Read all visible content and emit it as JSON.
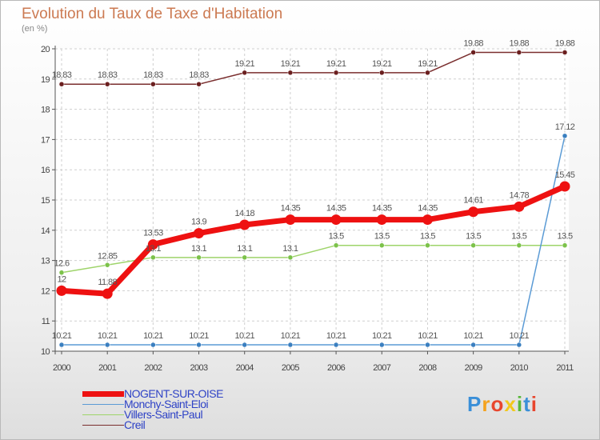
{
  "title": "Evolution du Taux de Taxe d'Habitation",
  "subtitle": "(en %)",
  "logo": {
    "letters": [
      {
        "char": "P",
        "color": "#3a8fd8"
      },
      {
        "char": "r",
        "color": "#f4a21e"
      },
      {
        "char": "o",
        "color": "#e8462e"
      },
      {
        "char": "x",
        "color": "#f2c81c"
      },
      {
        "char": "i",
        "color": "#58b83a"
      },
      {
        "char": "t",
        "color": "#3a8fd8"
      },
      {
        "char": "i",
        "color": "#e8462e"
      }
    ]
  },
  "chart_data": {
    "type": "line",
    "title": "Evolution du Taux de Taxe d'Habitation",
    "ylabel": "(en %)",
    "x": [
      "2000",
      "2001",
      "2002",
      "2003",
      "2004",
      "2005",
      "2006",
      "2007",
      "2008",
      "2009",
      "2010",
      "2011"
    ],
    "ylim": [
      10,
      20
    ],
    "yticks": [
      "10",
      "11",
      "12",
      "13",
      "14",
      "15",
      "16",
      "17",
      "18",
      "19",
      "20"
    ],
    "grid": true,
    "legend_position": "bottom-left",
    "series": [
      {
        "name": "NOGENT-SUR-OISE",
        "color": "#ee1111",
        "values": [
          12,
          11.9,
          13.53,
          13.9,
          14.18,
          14.35,
          14.35,
          14.35,
          14.35,
          14.61,
          14.78,
          15.45
        ],
        "labels": [
          "12",
          "11.88",
          "13.53",
          "13.9",
          "14.18",
          "14.35",
          "14.35",
          "14.35",
          "14.35",
          "14.61",
          "14.78",
          "15.45"
        ]
      },
      {
        "name": "Monchy-Saint-Eloi",
        "color": "#5b9bd5",
        "values": [
          10.21,
          10.21,
          10.21,
          10.21,
          10.21,
          10.21,
          10.21,
          10.21,
          10.21,
          10.21,
          10.21,
          17.12
        ],
        "labels": [
          "10.21",
          "10.21",
          "10.21",
          "10.21",
          "10.21",
          "10.21",
          "10.21",
          "10.21",
          "10.21",
          "10.21",
          "10.21",
          "17.12"
        ]
      },
      {
        "name": "Villers-Saint-Paul",
        "color": "#9ed46a",
        "values": [
          12.6,
          12.85,
          13.1,
          13.1,
          13.1,
          13.1,
          13.5,
          13.5,
          13.5,
          13.5,
          13.5,
          13.5
        ],
        "labels": [
          "12.6",
          "12.85",
          "13.1",
          "13.1",
          "13.1",
          "13.1",
          "13.5",
          "13.5",
          "13.5",
          "13.5",
          "13.5",
          "13.5"
        ]
      },
      {
        "name": "Creil",
        "color": "#7a2e2e",
        "values": [
          18.83,
          18.83,
          18.83,
          18.83,
          19.21,
          19.21,
          19.21,
          19.21,
          19.21,
          19.88,
          19.88,
          19.88
        ],
        "labels": [
          "18.83",
          "18.83",
          "18.83",
          "18.83",
          "19.21",
          "19.21",
          "19.21",
          "19.21",
          "19.21",
          "19.88",
          "19.88",
          "19.88"
        ]
      }
    ]
  }
}
